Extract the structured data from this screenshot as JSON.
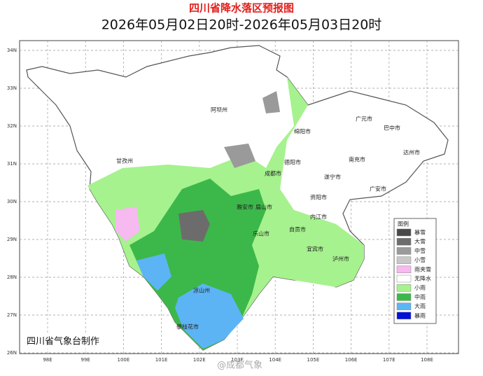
{
  "title": "四川省降水落区预报图",
  "subtitle": "2026年05月02日20时-2026年05月03日20时",
  "axes": {
    "lat": [
      "34N",
      "33N",
      "32N",
      "31N",
      "30N",
      "29N",
      "28N",
      "27N",
      "26N"
    ],
    "lon": [
      "98E",
      "99E",
      "100E",
      "101E",
      "102E",
      "103E",
      "104E",
      "105E",
      "106E",
      "107E",
      "108E"
    ]
  },
  "cities": [
    "阿坝州",
    "绵阳市",
    "广元市",
    "巴中市",
    "达州市",
    "南充市",
    "德阳市",
    "甘孜州",
    "成都市",
    "遂宁市",
    "广安市",
    "资阳市",
    "雅安市",
    "眉山市",
    "内江市",
    "乐山市",
    "自贡市",
    "宜宾市",
    "泸州市",
    "凉山州",
    "攀枝花市"
  ],
  "legend": {
    "title": "图例",
    "items": [
      {
        "label": "暴雪",
        "color": "#484848"
      },
      {
        "label": "大雪",
        "color": "#6c6c6c"
      },
      {
        "label": "中雪",
        "color": "#9a9a9a"
      },
      {
        "label": "小雪",
        "color": "#c8c8c8"
      },
      {
        "label": "雨夹雪",
        "color": "#f6b9f0"
      },
      {
        "label": "无降水",
        "color": "#ffffff"
      },
      {
        "label": "小雨",
        "color": "#a6f28e"
      },
      {
        "label": "中雨",
        "color": "#3cb84a"
      },
      {
        "label": "大雨",
        "color": "#5cb4f5"
      },
      {
        "label": "暴雨",
        "color": "#0010d8"
      }
    ]
  },
  "footer": "四川省气象台制作",
  "watermark": "@成都气象"
}
